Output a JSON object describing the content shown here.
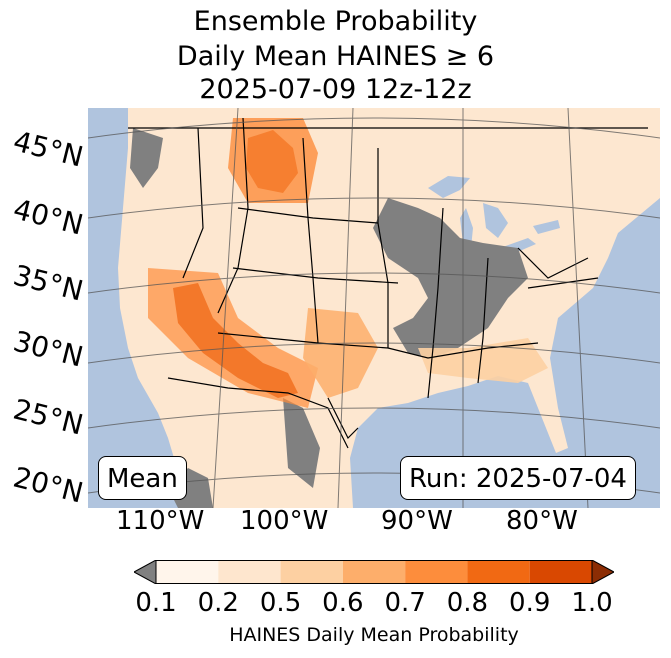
{
  "title": {
    "line1": "Ensemble Probability",
    "line2": "Daily Mean HAINES ≥ 6",
    "line3": "2025-07-09 12z-12z"
  },
  "map": {
    "ocean_color": "#b0c4de",
    "no_data_color": "#808080",
    "lat_labels": [
      "45°N",
      "40°N",
      "35°N",
      "30°N",
      "25°N",
      "20°N"
    ],
    "lon_labels": [
      "110°W",
      "100°W",
      "90°W",
      "80°W"
    ]
  },
  "annotations": {
    "left": "Mean",
    "right": "Run: 2025-07-04"
  },
  "colorbar": {
    "ticks": [
      "0.1",
      "0.2",
      "0.5",
      "0.6",
      "0.7",
      "0.8",
      "0.9",
      "1.0"
    ],
    "colors": [
      "#fff5eb",
      "#fee6ce",
      "#fdd0a2",
      "#fdae6b",
      "#fd8d3c",
      "#f16913",
      "#d94801"
    ],
    "under_color": "#808080",
    "over_color": "#8c2d04",
    "label": "HAINES Daily Mean Probability"
  }
}
